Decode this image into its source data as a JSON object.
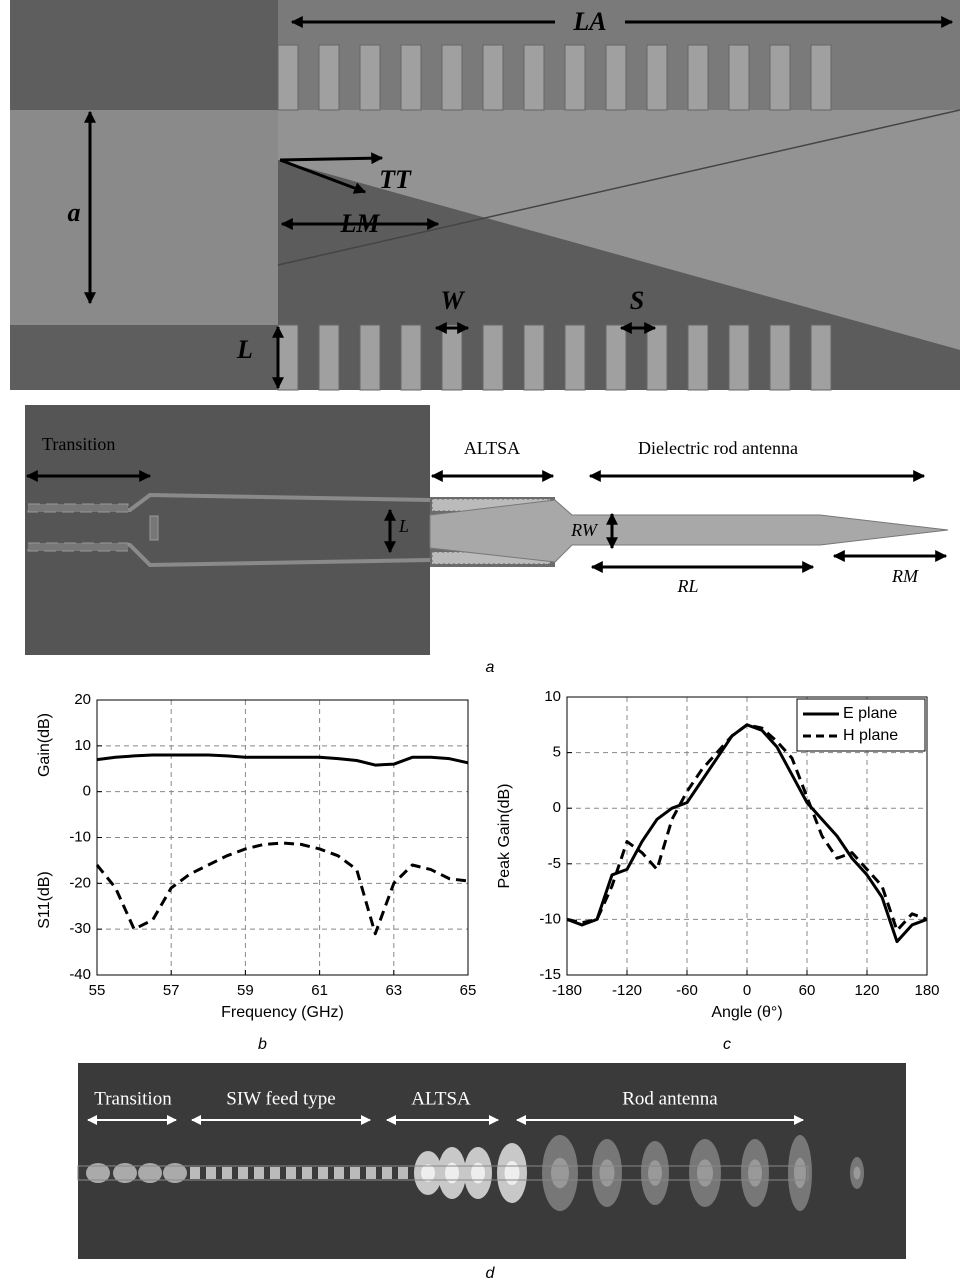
{
  "diagram_a": {
    "top_labels": [
      "LA",
      "a",
      "TT",
      "LM",
      "W",
      "S",
      "L"
    ],
    "bottom_labels": [
      "Transition",
      "ALTSA",
      "Dielectric rod antenna",
      "L",
      "RW",
      "RL",
      "RM"
    ],
    "caption": "a"
  },
  "chart_data": [
    {
      "type": "line",
      "caption": "b",
      "xlabel": "Frequency (GHz)",
      "ylabels": [
        "Gain(dB)",
        "S11(dB)"
      ],
      "x": [
        55,
        55.5,
        56,
        56.5,
        57,
        57.5,
        58,
        58.5,
        59,
        59.5,
        60,
        60.5,
        61,
        61.5,
        62,
        62.5,
        63,
        63.5,
        64,
        64.5,
        65
      ],
      "series": [
        {
          "color": "#000000",
          "linestyle": "solid",
          "values": [
            7,
            7.5,
            7.8,
            8,
            8,
            8,
            8,
            7.8,
            7.5,
            7.5,
            7.5,
            7.5,
            7.5,
            7.2,
            6.8,
            5.8,
            6,
            7.5,
            7.5,
            7.2,
            6.3
          ]
        },
        {
          "color": "#000000",
          "linestyle": "dashed",
          "values": [
            -16,
            -21,
            -30,
            -28,
            -21,
            -18,
            -16,
            -14,
            -12.5,
            -11.5,
            -11.2,
            -11.5,
            -12.5,
            -14,
            -17,
            -31,
            -20,
            -16,
            -17,
            -19,
            -19.5
          ]
        }
      ],
      "xlim": [
        55,
        65
      ],
      "xticks": [
        55,
        57,
        59,
        61,
        63,
        65
      ],
      "ylim": [
        -40,
        20
      ],
      "yticks": [
        -40,
        -30,
        -20,
        -10,
        0,
        10,
        20
      ],
      "grid": true
    },
    {
      "type": "line",
      "caption": "c",
      "xlabel": "Angle (θ°)",
      "ylabels": [
        "Peak Gain(dB)"
      ],
      "x": [
        -180,
        -165,
        -150,
        -135,
        -120,
        -105,
        -90,
        -75,
        -60,
        -45,
        -30,
        -15,
        0,
        15,
        30,
        45,
        60,
        75,
        90,
        105,
        120,
        135,
        150,
        165,
        180
      ],
      "series": [
        {
          "name": "E plane",
          "color": "#000000",
          "linestyle": "solid",
          "values": [
            -10,
            -10.5,
            -10,
            -6,
            -5.5,
            -3,
            -1,
            0,
            0.5,
            2.5,
            4.5,
            6.5,
            7.5,
            7,
            5.5,
            3,
            0.5,
            -1,
            -2.5,
            -4.5,
            -6,
            -8,
            -12,
            -10.5,
            -10
          ]
        },
        {
          "name": "H plane",
          "color": "#000000",
          "linestyle": "dashed",
          "values": [
            -10,
            -10.3,
            -10,
            -7,
            -3,
            -4,
            -5.5,
            -1,
            1.5,
            3.5,
            5,
            6.5,
            7.5,
            7.2,
            6,
            4.5,
            1,
            -2.5,
            -4.5,
            -4,
            -5.5,
            -7,
            -11,
            -9.5,
            -10
          ]
        }
      ],
      "xlim": [
        -180,
        180
      ],
      "xticks": [
        -180,
        -120,
        -60,
        0,
        60,
        120,
        180
      ],
      "ylim": [
        -15,
        10
      ],
      "yticks": [
        -15,
        -10,
        -5,
        0,
        5,
        10
      ],
      "grid": true,
      "legend": "upper right"
    }
  ],
  "diagram_d": {
    "labels": [
      "Transition",
      "SIW feed type",
      "ALTSA",
      "Rod antenna"
    ],
    "caption": "d"
  }
}
